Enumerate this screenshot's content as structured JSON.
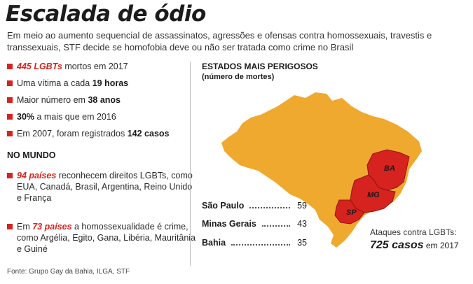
{
  "title": "Escalada de ódio",
  "subtitle": "Em meio ao aumento sequencial de assassinatos, agressões e ofensas contra homossexuais, travestis e transsexuais, STF decide se homofobia deve ou não ser tratada como crime no Brasil",
  "facts": [
    {
      "strong": "445 LGBTs",
      "rest": " mortos em 2017"
    },
    {
      "pre": "Uma vítima a cada ",
      "bold": "19 horas"
    },
    {
      "pre": "Maior número em ",
      "bold": "38 anos"
    },
    {
      "bold": "30%",
      "rest": " a mais que em 2016"
    },
    {
      "pre": "Em 2007, foram registrados ",
      "bold": "142 casos"
    }
  ],
  "world": {
    "heading": "NO MUNDO",
    "items": [
      {
        "strong": "94 países",
        "rest": " reconhecem direitos LGBTs, como EUA, Canadá, Brasil, Argentina, Reino Unido e França"
      },
      {
        "pre": "Em ",
        "strong": "73 países",
        "rest": " a homossexualidade é crime, como Argélia, Egito, Gana, Libéria, Mauritânia e Guiné"
      }
    ]
  },
  "source": "Fonte: Grupo Gay da Bahia, ILGA, STF",
  "map": {
    "heading": "ESTADOS MAIS PERIGOSOS",
    "subheading": "(número de mortes)",
    "states": [
      {
        "code": "BA"
      },
      {
        "code": "MG"
      },
      {
        "code": "SP"
      }
    ],
    "colors": {
      "country": "#f0a92f",
      "highlight": "#d7231f"
    }
  },
  "ranking": [
    {
      "state": "São Paulo",
      "value": "59"
    },
    {
      "state": "Minas Gerais",
      "value": "43"
    },
    {
      "state": "Bahia",
      "value": "35"
    }
  ],
  "attacks": {
    "label": "Ataques contra LGBTs:",
    "value": "725 casos",
    "suffix": " em 2017"
  }
}
